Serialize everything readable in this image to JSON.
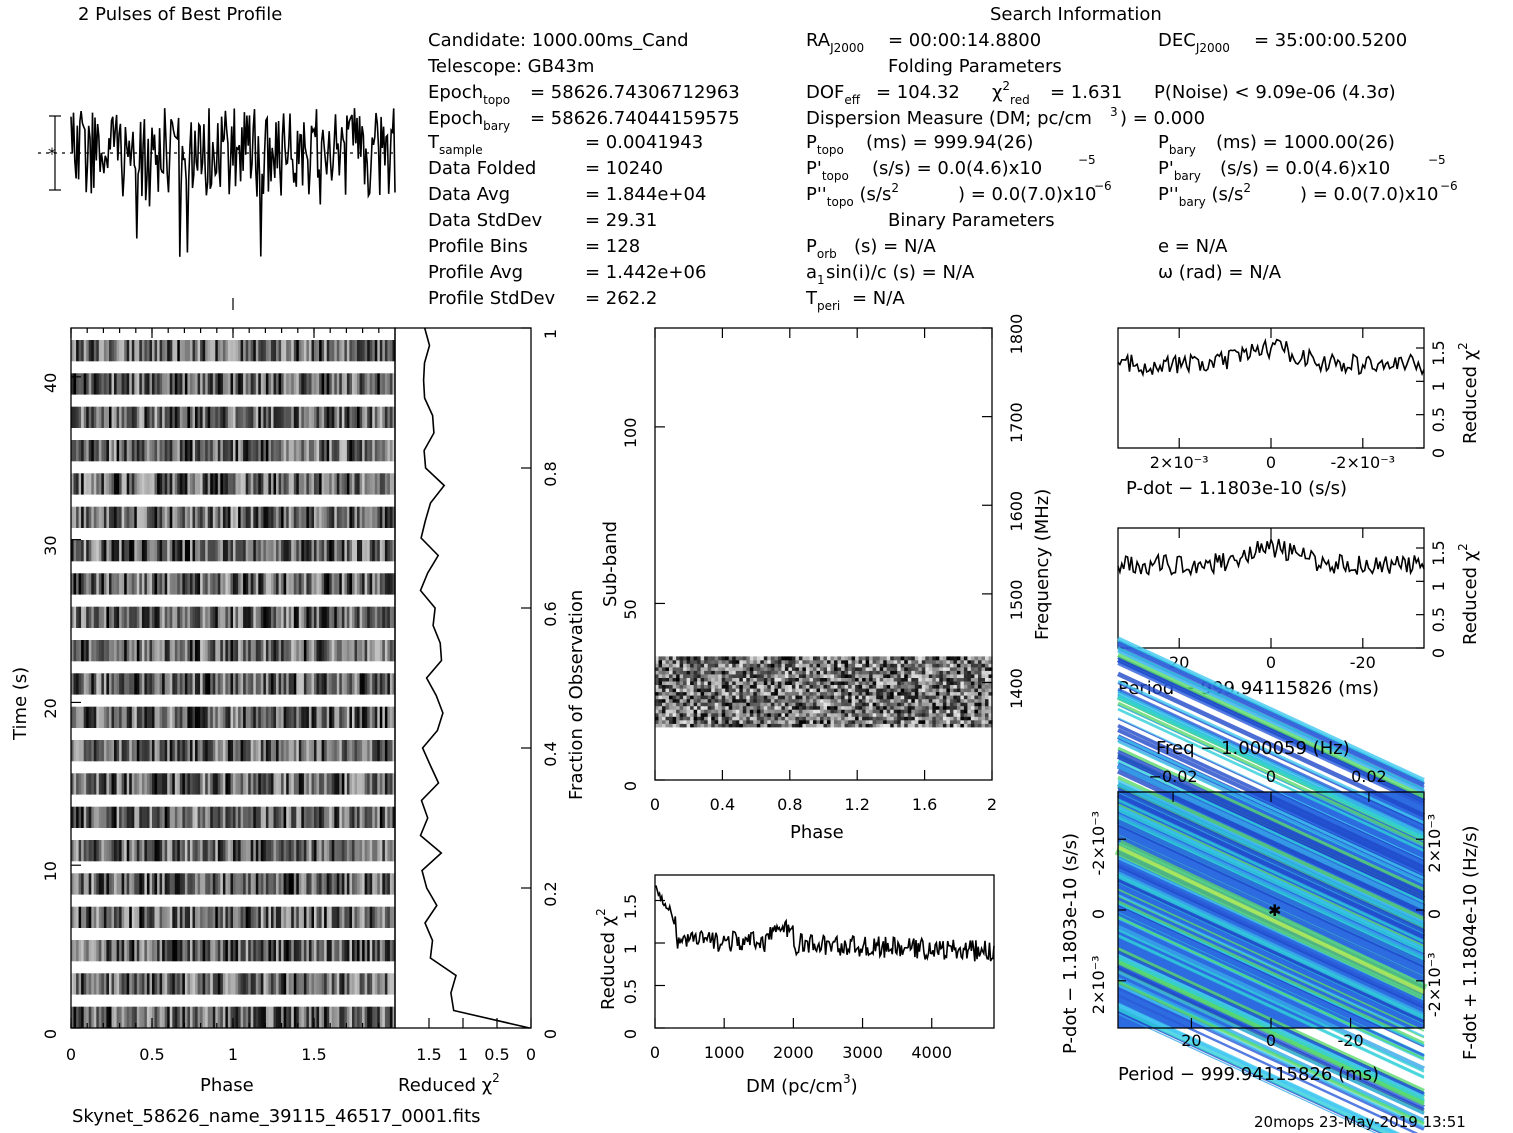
{
  "profile_title": "2 Pulses of Best Profile",
  "search_title": "Search Information",
  "info": {
    "candidate": "Candidate:  1000.00ms_Cand",
    "telescope": "Telescope:  GB43m",
    "epoch_topo": "= 58626.74306712963",
    "epoch_bary": "= 58626.74044159575",
    "t_sample": "=   0.0041943",
    "data_folded_label": "Data Folded",
    "data_folded": "=   10240",
    "data_avg_label": "Data Avg",
    "data_avg": "=   1.844e+04",
    "data_std_label": "Data StdDev",
    "data_std": "=   29.31",
    "prof_bins_label": "Profile Bins",
    "prof_bins": "=   128",
    "prof_avg_label": "Profile Avg",
    "prof_avg": "=   1.442e+06",
    "prof_std_label": "Profile StdDev",
    "prof_std": "=   262.2",
    "ra": "= 00:00:14.8800",
    "dec": "= 35:00:00.5200",
    "folding_title": "Folding Parameters",
    "dof": "= 104.32",
    "chi2": "= 1.631",
    "pnoise": "P(Noise) < 9.09e-06  (4.3σ)",
    "dm_line": "Dispersion Measure (DM; pc/cm",
    "dm_val": ") = 0.000",
    "ptopo": "(ms) =  999.94(26)",
    "pbary": "(ms) =  1000.00(26)",
    "pdtopo": "(s/s) = 0.0(4.6)x10",
    "pdbary": "(s/s) = 0.0(4.6)x10",
    "pddtopo": ") = 0.0(7.0)x10",
    "pddbary": ") = 0.0(7.0)x10",
    "binary_title": "Binary Parameters",
    "porb": "(s) = N/A",
    "ecc": "e = N/A",
    "asini": "sin(i)/c (s) = N/A",
    "omega": "ω (rad) = N/A",
    "tperi": "= N/A"
  },
  "labels": {
    "phase": "Phase",
    "time": "Time (s)",
    "red_chi": "Reduced χ",
    "frac_obs": "Fraction of Observation",
    "subband": "Sub-band",
    "frequency": "Frequency (MHz)",
    "dm_axis": "DM (pc/cm",
    "pdot_axis": "P-dot − 1.1803e-10 (s/s)",
    "period_axis": "Period − 999.94115826 (ms)",
    "freq_axis": "Freq − 1.000059 (Hz)",
    "pdot_left": "P-dot − 1.1803e-10 (s/s)",
    "fdot_right": "F-dot + 1.1804e-10 (Hz/s)",
    "filename": "Skynet_58626_name_39115_46517_0001.fits",
    "footer": "20mops 23-May-2019 13:51"
  },
  "chart_data": [
    {
      "type": "line",
      "name": "profile",
      "x_range": [
        0,
        2
      ],
      "note": "two cycles of noisy pulse profile"
    },
    {
      "type": "heatmap",
      "name": "time-phase",
      "x_range": [
        0,
        2
      ],
      "ylim": [
        0,
        43
      ],
      "xlabel": "Phase",
      "ylabel": "Time (s)",
      "x_ticks": [
        "0",
        "0.5",
        "1",
        "1.5"
      ],
      "y_ticks": [
        "0",
        "10",
        "20",
        "30",
        "40"
      ]
    },
    {
      "type": "line",
      "name": "time-chi2",
      "xlim": [
        0,
        2
      ],
      "ylim": [
        0,
        1
      ],
      "xlabel": "Reduced χ2",
      "ylabel": "Fraction of Observation",
      "x_ticks": [
        "1.5",
        "1",
        "0.5",
        "0"
      ],
      "y_ticks": [
        "0",
        "0.2",
        "0.4",
        "0.6",
        "0.8",
        "1"
      ]
    },
    {
      "type": "heatmap",
      "name": "subband-phase",
      "xlim": [
        0,
        2
      ],
      "ylim": [
        0,
        128
      ],
      "xlabel": "Phase",
      "ylabel": "Sub-band",
      "x_ticks": [
        "0",
        "0.4",
        "0.8",
        "1.2",
        "1.6",
        "2"
      ],
      "y_ticks": [
        "0",
        "50",
        "100"
      ],
      "freq_ticks": [
        "1400",
        "1500",
        "1600",
        "1700",
        "1800"
      ],
      "filled_band": [
        15,
        35
      ]
    },
    {
      "type": "line",
      "name": "dm-chi2",
      "xlim": [
        0,
        4900
      ],
      "ylim": [
        0,
        1.8
      ],
      "xlabel": "DM (pc/cm3)",
      "ylabel": "Reduced χ2",
      "x_ticks": [
        "0",
        "1000",
        "2000",
        "3000",
        "4000"
      ],
      "y_ticks": [
        "0",
        "0.5",
        "1",
        "1.5"
      ]
    },
    {
      "type": "line",
      "name": "pdot-chi2",
      "ylim": [
        0,
        1.8
      ],
      "xlabel": "P-dot − 1.1803e-10 (s/s)",
      "ylabel": "Reduced χ2",
      "x_ticks": [
        "2x10-3",
        "0",
        "-2x10-3"
      ],
      "y_ticks": [
        "0",
        "0.5",
        "1",
        "1.5"
      ]
    },
    {
      "type": "line",
      "name": "period-chi2",
      "ylim": [
        0,
        1.8
      ],
      "xlabel": "Period − 999.94115826 (ms)",
      "ylabel": "Reduced χ2",
      "x_ticks": [
        "20",
        "0",
        "-20"
      ],
      "y_ticks": [
        "0",
        "0.5",
        "1",
        "1.5"
      ]
    },
    {
      "type": "heatmap",
      "name": "period-pdot",
      "xlabel": "Period − 999.94115826 (ms)",
      "ylabel": "P-dot − 1.1803e-10 (s/s)",
      "x_ticks": [
        "20",
        "0",
        "-20"
      ],
      "top_ticks": [
        "-0.02",
        "0",
        "0.02"
      ],
      "y_ticks": [
        "-2x10-3",
        "0",
        "2x10-3"
      ],
      "right_ticks": [
        "2x10-3",
        "0",
        "-2x10-3"
      ]
    }
  ]
}
